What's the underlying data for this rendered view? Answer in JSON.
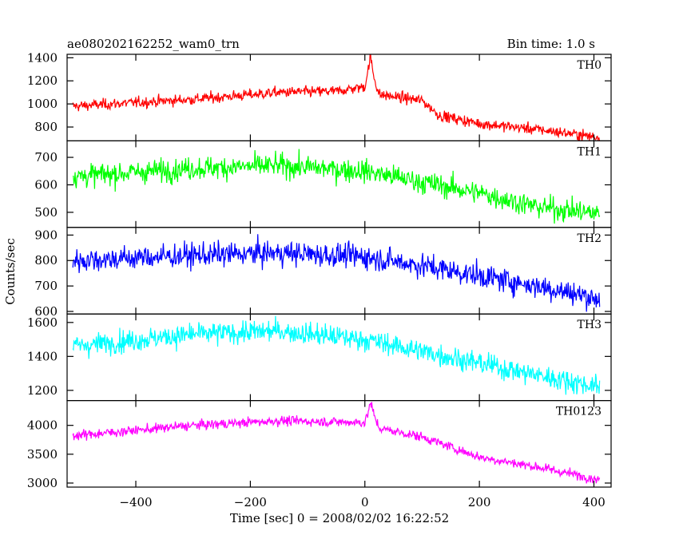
{
  "chart_data": {
    "type": "line",
    "title": "ae080202162252_wam0_trn",
    "bin_time_label": "Bin time: 1.0 s",
    "xlabel": "Time [sec] 0 = 2008/02/02 16:22:52",
    "ylabel": "Counts/sec",
    "xlim": [
      -520,
      430
    ],
    "x_ticks": [
      -400,
      -200,
      0,
      200,
      400
    ],
    "panels": [
      {
        "name": "TH0",
        "color": "#ff0000",
        "ylim": [
          680,
          1430
        ],
        "y_ticks": [
          800,
          1000,
          1200,
          1400
        ],
        "profile": [
          [
            -510,
            980
          ],
          [
            -300,
            1040
          ],
          [
            -150,
            1100
          ],
          [
            -50,
            1110
          ],
          [
            0,
            1150
          ],
          [
            5,
            1280
          ],
          [
            10,
            1410
          ],
          [
            15,
            1250
          ],
          [
            25,
            1080
          ],
          [
            100,
            1030
          ],
          [
            130,
            900
          ],
          [
            200,
            830
          ],
          [
            300,
            780
          ],
          [
            410,
            710
          ]
        ],
        "noise": 40
      },
      {
        "name": "TH1",
        "color": "#00ff00",
        "ylim": [
          445,
          760
        ],
        "y_ticks": [
          500,
          600,
          700
        ],
        "profile": [
          [
            -510,
            630
          ],
          [
            -300,
            660
          ],
          [
            -150,
            670
          ],
          [
            0,
            650
          ],
          [
            100,
            610
          ],
          [
            200,
            570
          ],
          [
            300,
            520
          ],
          [
            410,
            495
          ]
        ],
        "noise": 35
      },
      {
        "name": "TH2",
        "color": "#0000ff",
        "ylim": [
          590,
          930
        ],
        "y_ticks": [
          600,
          700,
          800,
          900
        ],
        "profile": [
          [
            -510,
            800
          ],
          [
            -300,
            820
          ],
          [
            -150,
            830
          ],
          [
            0,
            815
          ],
          [
            100,
            780
          ],
          [
            200,
            740
          ],
          [
            300,
            700
          ],
          [
            410,
            650
          ]
        ],
        "noise": 40
      },
      {
        "name": "TH3",
        "color": "#00ffff",
        "ylim": [
          1140,
          1650
        ],
        "y_ticks": [
          1200,
          1400,
          1600
        ],
        "profile": [
          [
            -510,
            1460
          ],
          [
            -300,
            1530
          ],
          [
            -150,
            1550
          ],
          [
            0,
            1500
          ],
          [
            100,
            1430
          ],
          [
            200,
            1360
          ],
          [
            300,
            1290
          ],
          [
            410,
            1220
          ]
        ],
        "noise": 55
      },
      {
        "name": "TH0123",
        "color": "#ff00ff",
        "ylim": [
          2930,
          4430
        ],
        "y_ticks": [
          3000,
          3500,
          4000
        ],
        "profile": [
          [
            -510,
            3820
          ],
          [
            -300,
            4000
          ],
          [
            -150,
            4080
          ],
          [
            0,
            4050
          ],
          [
            5,
            4200
          ],
          [
            10,
            4400
          ],
          [
            15,
            4200
          ],
          [
            25,
            3950
          ],
          [
            100,
            3800
          ],
          [
            200,
            3450
          ],
          [
            300,
            3280
          ],
          [
            410,
            3060
          ]
        ],
        "noise": 70
      }
    ]
  }
}
